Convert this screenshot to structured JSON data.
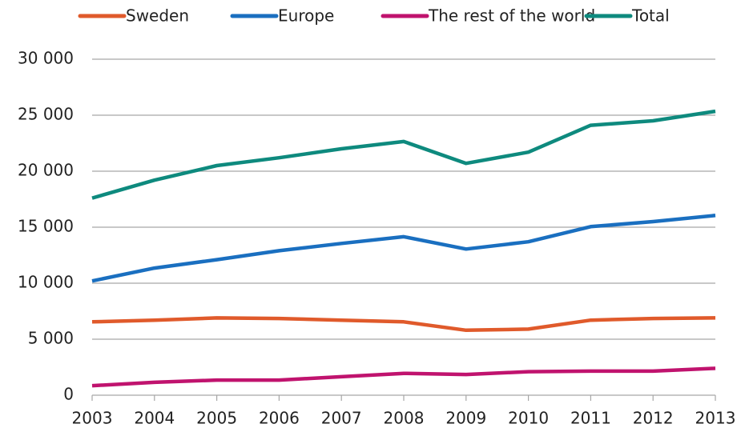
{
  "chart_data": {
    "type": "line",
    "x": [
      2003,
      2004,
      2005,
      2006,
      2007,
      2008,
      2009,
      2010,
      2011,
      2012,
      2013
    ],
    "xlim": [
      2003,
      2013
    ],
    "xticks": [
      2003,
      2004,
      2005,
      2006,
      2007,
      2008,
      2009,
      2010,
      2011,
      2012,
      2013
    ],
    "ylim": [
      0,
      30000
    ],
    "yticks": [
      0,
      {
        "value": 5000,
        "label": "5 000"
      },
      {
        "value": 10000,
        "label": "10 000"
      },
      {
        "value": 15000,
        "label": "15 000"
      },
      {
        "value": 20000,
        "label": "20 000"
      },
      {
        "value": 25000,
        "label": "25 000"
      },
      {
        "value": 30000,
        "label": "30 000"
      }
    ],
    "grid": true,
    "legend": "top",
    "series": [
      {
        "name": "Sweden",
        "color": "#e05a2b",
        "values": [
          6550,
          6700,
          6900,
          6850,
          6700,
          6550,
          5800,
          5900,
          6700,
          6850,
          6900
        ]
      },
      {
        "name": "Europe",
        "color": "#1a6fc0",
        "values": [
          10200,
          11350,
          12100,
          12900,
          13550,
          14150,
          13050,
          13700,
          15050,
          15500,
          16050
        ]
      },
      {
        "name": "The rest of the world",
        "color": "#c0136e",
        "values": [
          850,
          1150,
          1350,
          1350,
          1650,
          1950,
          1850,
          2100,
          2150,
          2150,
          2400
        ]
      },
      {
        "name": "Total",
        "color": "#0e8a7e",
        "values": [
          17600,
          19200,
          20500,
          21200,
          22000,
          22650,
          20700,
          21700,
          24100,
          24500,
          25350
        ]
      }
    ]
  }
}
